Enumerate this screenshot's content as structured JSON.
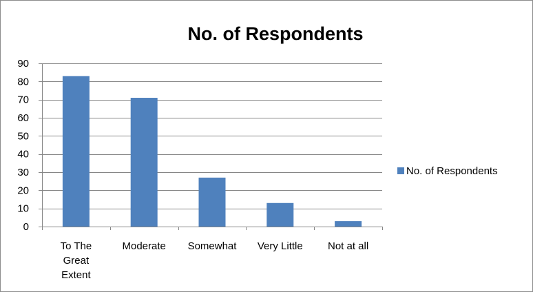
{
  "chart_data": {
    "type": "bar",
    "title": "No. of Respondents",
    "categories": [
      "To The Great Extent",
      "Moderate",
      "Somewhat",
      "Very Little",
      "Not at all"
    ],
    "category_label_lines": [
      [
        "To The",
        "Great",
        "Extent"
      ],
      [
        "Moderate"
      ],
      [
        "Somewhat"
      ],
      [
        "Very Little"
      ],
      [
        "Not at all"
      ]
    ],
    "series": [
      {
        "name": "No. of Respondents",
        "values": [
          83,
          71,
          27,
          13,
          3
        ]
      }
    ],
    "ylim": [
      0,
      90
    ],
    "yticks": [
      0,
      10,
      20,
      30,
      40,
      50,
      60,
      70,
      80,
      90
    ],
    "xlabel": "",
    "ylabel": "",
    "grid": true,
    "legend_position": "right",
    "colors": {
      "bar": "#4F81BD",
      "grid": "#868686",
      "axis": "#868686"
    }
  }
}
